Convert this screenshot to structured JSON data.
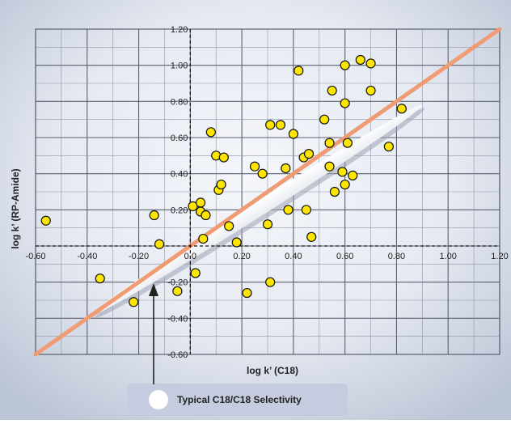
{
  "chart_data": {
    "type": "scatter",
    "title": "",
    "xlabel": "log k’ (C18)",
    "ylabel": "log k’ (RP-Amide)",
    "xlim": [
      -0.6,
      1.2
    ],
    "ylim": [
      -0.6,
      1.2
    ],
    "x_ticks": [
      "-0.60",
      "-0.40",
      "-0.20",
      "0.0",
      "0.20",
      "0.40",
      "0.60",
      "0.80",
      "1.00",
      "1.20"
    ],
    "y_ticks": [
      "1.20",
      "1.00",
      "0.80",
      "0.60",
      "0.40",
      "0.20",
      "-0.20",
      "-0.40",
      "-0.60"
    ],
    "grid": true,
    "points": [
      {
        "x": -0.56,
        "y": 0.14
      },
      {
        "x": -0.35,
        "y": -0.18
      },
      {
        "x": -0.22,
        "y": -0.31
      },
      {
        "x": -0.14,
        "y": 0.17
      },
      {
        "x": -0.12,
        "y": 0.01
      },
      {
        "x": -0.05,
        "y": -0.25
      },
      {
        "x": 0.01,
        "y": 0.22
      },
      {
        "x": 0.02,
        "y": -0.15
      },
      {
        "x": 0.04,
        "y": 0.24
      },
      {
        "x": 0.04,
        "y": 0.19
      },
      {
        "x": 0.05,
        "y": 0.04
      },
      {
        "x": 0.06,
        "y": 0.17
      },
      {
        "x": 0.08,
        "y": 0.63
      },
      {
        "x": 0.1,
        "y": 0.5
      },
      {
        "x": 0.11,
        "y": 0.31
      },
      {
        "x": 0.12,
        "y": 0.34
      },
      {
        "x": 0.13,
        "y": 0.49
      },
      {
        "x": 0.15,
        "y": 0.11
      },
      {
        "x": 0.18,
        "y": 0.02
      },
      {
        "x": 0.22,
        "y": -0.26
      },
      {
        "x": 0.25,
        "y": 0.44
      },
      {
        "x": 0.28,
        "y": 0.4
      },
      {
        "x": 0.3,
        "y": 0.12
      },
      {
        "x": 0.31,
        "y": 0.67
      },
      {
        "x": 0.31,
        "y": -0.2
      },
      {
        "x": 0.35,
        "y": 0.67
      },
      {
        "x": 0.37,
        "y": 0.43
      },
      {
        "x": 0.38,
        "y": 0.2
      },
      {
        "x": 0.4,
        "y": 0.62
      },
      {
        "x": 0.42,
        "y": 0.97
      },
      {
        "x": 0.44,
        "y": 0.49
      },
      {
        "x": 0.45,
        "y": 0.2
      },
      {
        "x": 0.46,
        "y": 0.51
      },
      {
        "x": 0.47,
        "y": 0.05
      },
      {
        "x": 0.52,
        "y": 0.7
      },
      {
        "x": 0.54,
        "y": 0.57
      },
      {
        "x": 0.54,
        "y": 0.44
      },
      {
        "x": 0.55,
        "y": 0.86
      },
      {
        "x": 0.56,
        "y": 0.3
      },
      {
        "x": 0.59,
        "y": 0.41
      },
      {
        "x": 0.6,
        "y": 1.0
      },
      {
        "x": 0.6,
        "y": 0.79
      },
      {
        "x": 0.6,
        "y": 0.34
      },
      {
        "x": 0.61,
        "y": 0.57
      },
      {
        "x": 0.63,
        "y": 0.39
      },
      {
        "x": 0.66,
        "y": 1.03
      },
      {
        "x": 0.7,
        "y": 1.01
      },
      {
        "x": 0.7,
        "y": 0.86
      },
      {
        "x": 0.77,
        "y": 0.55
      },
      {
        "x": 0.82,
        "y": 0.76
      }
    ],
    "trend_line": {
      "x": [
        -0.6,
        1.2
      ],
      "y": [
        -0.6,
        1.2
      ],
      "color": "#ef9b73"
    },
    "point_color": "#ffe600",
    "legend": {
      "label": "Typical C18/C18 Selectivity",
      "placement": "bottom-center"
    }
  }
}
